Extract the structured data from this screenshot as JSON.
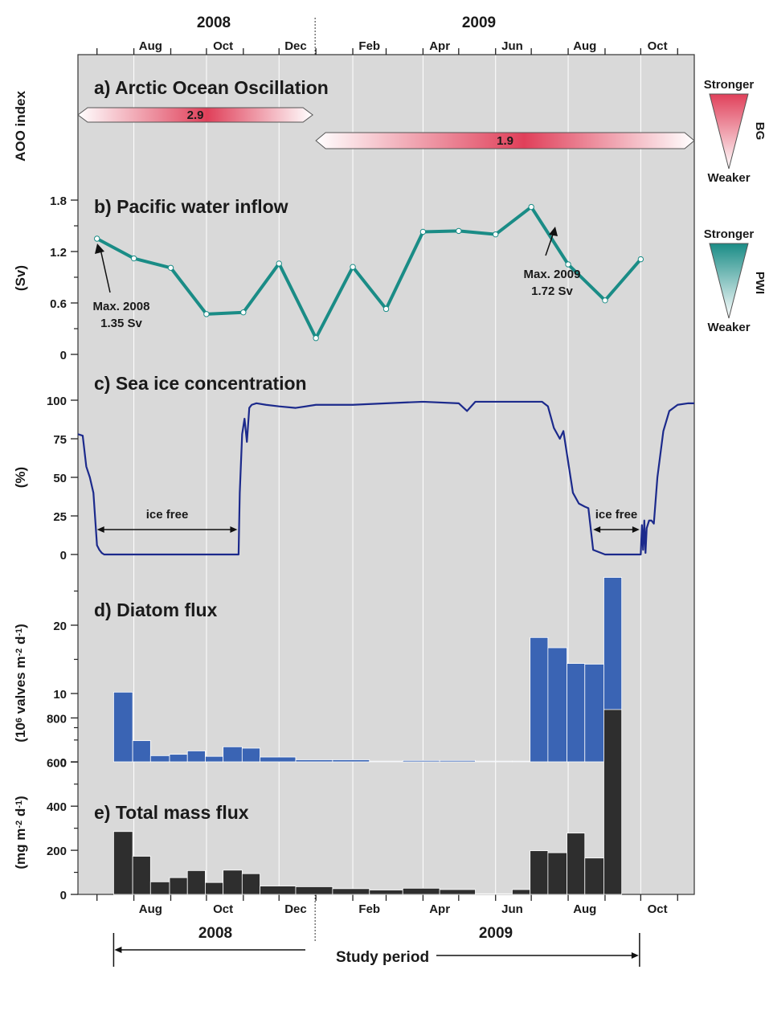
{
  "figure": {
    "top_years": [
      "2008",
      "2009"
    ],
    "months": [
      "Aug",
      "Oct",
      "Dec",
      "Feb",
      "Apr",
      "Jun",
      "Aug",
      "Oct"
    ],
    "bottom_year_2008": "2008",
    "bottom_year_2009": "2009",
    "study_period": "Study period",
    "colors": {
      "panel_bg": "#d9d9d9",
      "aoo": "#e0405a",
      "pwi": "#1a8c86",
      "sic": "#1c2a8c",
      "diatom": "#3a64b4",
      "mass": "#2e2e2e"
    }
  },
  "chart_data": [
    {
      "type": "range-bar",
      "title": "a) Arctic Ocean Oscillation",
      "ylabel": "AOO index",
      "segments": [
        {
          "label": "2.9",
          "start": "2008-06-15",
          "end": "2009-01-01"
        },
        {
          "label": "1.9",
          "start": "2009-01-01",
          "end": "2009-11-15"
        }
      ],
      "legend": {
        "top": "Stronger",
        "bottom": "Weaker",
        "name": "BG"
      }
    },
    {
      "type": "line",
      "title": "b) Pacific water inflow",
      "ylabel": "(Sv)",
      "yticks": [
        "0",
        "0.6",
        "1.2",
        "1.8"
      ],
      "ylim": [
        0,
        1.8
      ],
      "x": [
        "2008-07-01",
        "2008-08-01",
        "2008-09-01",
        "2008-10-01",
        "2008-11-01",
        "2008-12-01",
        "2009-01-01",
        "2009-02-01",
        "2009-03-01",
        "2009-04-01",
        "2009-05-01",
        "2009-06-01",
        "2009-07-01",
        "2009-08-01",
        "2009-09-01",
        "2009-10-01"
      ],
      "y": [
        1.35,
        1.12,
        1.01,
        0.47,
        0.49,
        1.06,
        0.19,
        1.02,
        0.53,
        1.43,
        1.44,
        1.4,
        1.72,
        1.05,
        0.63,
        1.11
      ],
      "annotations": [
        {
          "lines": [
            "Max. 2008",
            "1.35 Sv"
          ]
        },
        {
          "lines": [
            "Max. 2009",
            "1.72 Sv"
          ]
        }
      ],
      "legend": {
        "top": "Stronger",
        "bottom": "Weaker",
        "name": "PWI"
      }
    },
    {
      "type": "line",
      "title": "c) Sea ice concentration",
      "ylabel": "(%)",
      "yticks": [
        "0",
        "25",
        "50",
        "75",
        "100"
      ],
      "ylim": [
        0,
        100
      ],
      "x": [
        "2008-06-15",
        "2008-06-19",
        "2008-06-22",
        "2008-06-25",
        "2008-06-28",
        "2008-07-01",
        "2008-07-03",
        "2008-07-05",
        "2008-07-07",
        "2008-07-15",
        "2008-08-01",
        "2008-09-01",
        "2008-10-01",
        "2008-10-28",
        "2008-10-29",
        "2008-10-31",
        "2008-11-02",
        "2008-11-04",
        "2008-11-06",
        "2008-11-08",
        "2008-11-12",
        "2008-11-20",
        "2008-12-01",
        "2008-12-15",
        "2009-01-01",
        "2009-02-01",
        "2009-03-01",
        "2009-04-01",
        "2009-05-01",
        "2009-05-08",
        "2009-05-15",
        "2009-06-01",
        "2009-07-01",
        "2009-07-10",
        "2009-07-15",
        "2009-07-20",
        "2009-07-25",
        "2009-07-28",
        "2009-08-01",
        "2009-08-05",
        "2009-08-10",
        "2009-08-15",
        "2009-08-18",
        "2009-08-22",
        "2009-09-01",
        "2009-09-15",
        "2009-10-01",
        "2009-10-02",
        "2009-10-03",
        "2009-10-04",
        "2009-10-05",
        "2009-10-06",
        "2009-10-08",
        "2009-10-10",
        "2009-10-12",
        "2009-10-15",
        "2009-10-20",
        "2009-10-25",
        "2009-11-01",
        "2009-11-10",
        "2009-11-15"
      ],
      "y": [
        78,
        77,
        57,
        50,
        40,
        6,
        3,
        1,
        0,
        0,
        0,
        0,
        0,
        0,
        40,
        78,
        88,
        73,
        95,
        97,
        98,
        97,
        96,
        95,
        97,
        97,
        98,
        99,
        98,
        93,
        99,
        99,
        99,
        99,
        96,
        82,
        75,
        80,
        60,
        40,
        33,
        31,
        30,
        3,
        0,
        0,
        0,
        19,
        3,
        22,
        1,
        17,
        22,
        22,
        20,
        50,
        80,
        93,
        97,
        98,
        98
      ],
      "annotations": [
        {
          "label": "ice free",
          "start": "2008-07-01",
          "end": "2008-10-27"
        },
        {
          "label": "ice free",
          "start": "2009-08-22",
          "end": "2009-09-30"
        }
      ]
    },
    {
      "type": "bar",
      "title": "d) Diatom flux",
      "ylabel": "(10^6 valves m^-2 d^-1)",
      "yticks": [
        "0",
        "10",
        "20"
      ],
      "ylim": [
        0,
        27
      ],
      "bins": [
        [
          "2008-07-15",
          "2008-07-31"
        ],
        [
          "2008-07-31",
          "2008-08-15"
        ],
        [
          "2008-08-15",
          "2008-08-31"
        ],
        [
          "2008-08-31",
          "2008-09-15"
        ],
        [
          "2008-09-15",
          "2008-09-30"
        ],
        [
          "2008-09-30",
          "2008-10-15"
        ],
        [
          "2008-10-15",
          "2008-10-31"
        ],
        [
          "2008-10-31",
          "2008-11-15"
        ],
        [
          "2008-11-15",
          "2008-12-15"
        ],
        [
          "2008-12-15",
          "2009-01-15"
        ],
        [
          "2009-01-15",
          "2009-02-15"
        ],
        [
          "2009-02-15",
          "2009-03-15"
        ],
        [
          "2009-03-15",
          "2009-04-15"
        ],
        [
          "2009-04-15",
          "2009-05-15"
        ],
        [
          "2009-05-15",
          "2009-06-15"
        ],
        [
          "2009-06-15",
          "2009-06-30"
        ],
        [
          "2009-06-30",
          "2009-07-15"
        ],
        [
          "2009-07-15",
          "2009-07-31"
        ],
        [
          "2009-07-31",
          "2009-08-15"
        ],
        [
          "2009-08-15",
          "2009-08-31"
        ],
        [
          "2009-08-31",
          "2009-09-15"
        ]
      ],
      "values": [
        10.2,
        3.1,
        0.9,
        1.1,
        1.6,
        0.8,
        2.2,
        2.0,
        0.7,
        0.3,
        0.3,
        0.1,
        0.2,
        0.2,
        0.1,
        0.1,
        18.2,
        16.7,
        14.4,
        14.3,
        27.0
      ]
    },
    {
      "type": "bar",
      "title": "e) Total mass flux",
      "ylabel": "(mg m^-2 d^-1)",
      "yticks": [
        "0",
        "200",
        "400",
        "600",
        "800"
      ],
      "ylim": [
        0,
        870
      ],
      "bins": [
        [
          "2008-07-15",
          "2008-07-31"
        ],
        [
          "2008-07-31",
          "2008-08-15"
        ],
        [
          "2008-08-15",
          "2008-08-31"
        ],
        [
          "2008-08-31",
          "2008-09-15"
        ],
        [
          "2008-09-15",
          "2008-09-30"
        ],
        [
          "2008-09-30",
          "2008-10-15"
        ],
        [
          "2008-10-15",
          "2008-10-31"
        ],
        [
          "2008-10-31",
          "2008-11-15"
        ],
        [
          "2008-11-15",
          "2008-12-15"
        ],
        [
          "2008-12-15",
          "2009-01-15"
        ],
        [
          "2009-01-15",
          "2009-02-15"
        ],
        [
          "2009-02-15",
          "2009-03-15"
        ],
        [
          "2009-03-15",
          "2009-04-15"
        ],
        [
          "2009-04-15",
          "2009-05-15"
        ],
        [
          "2009-05-15",
          "2009-06-15"
        ],
        [
          "2009-06-15",
          "2009-06-30"
        ],
        [
          "2009-06-30",
          "2009-07-15"
        ],
        [
          "2009-07-15",
          "2009-07-31"
        ],
        [
          "2009-07-31",
          "2009-08-15"
        ],
        [
          "2009-08-15",
          "2009-08-31"
        ],
        [
          "2009-08-31",
          "2009-09-15"
        ]
      ],
      "values": [
        285,
        173,
        57,
        76,
        108,
        54,
        110,
        94,
        38,
        35,
        26,
        20,
        28,
        22,
        3,
        22,
        198,
        189,
        278,
        165,
        838
      ]
    }
  ]
}
